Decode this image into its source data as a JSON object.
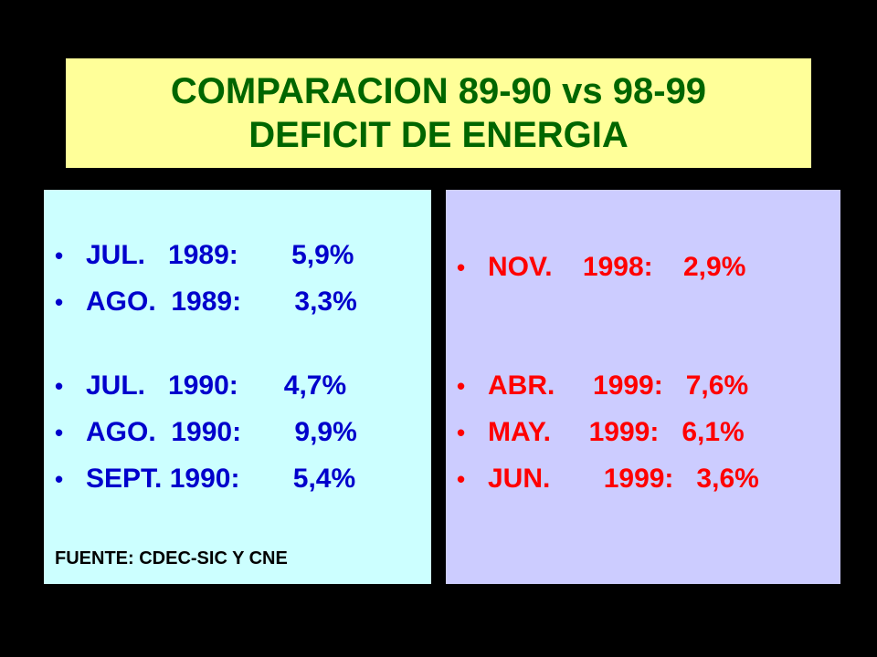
{
  "title": {
    "line1": "COMPARACION 89-90 vs 98-99",
    "line2": "DEFICIT DE ENERGIA"
  },
  "left_panel": {
    "items": [
      "JUL.   1989:       5,9%",
      "AGO.  1989:       3,3%",
      "JUL.   1990:      4,7%",
      "AGO.  1990:       9,9%",
      "SEPT. 1990:       5,4%"
    ],
    "source": "FUENTE: CDEC-SIC Y CNE"
  },
  "right_panel": {
    "items": [
      "NOV.    1998:    2,9%",
      "ABR.     1999:   7,6%",
      "MAY.     1999:   6,1%",
      "JUN.       1999:   3,6%"
    ]
  },
  "bullet": "•",
  "colors": {
    "background": "#000000",
    "title_bg": "#ffff99",
    "title_text": "#006600",
    "left_bg": "#ccffff",
    "left_text": "#0000cc",
    "right_bg": "#ccccff",
    "right_text": "#ff0000"
  }
}
